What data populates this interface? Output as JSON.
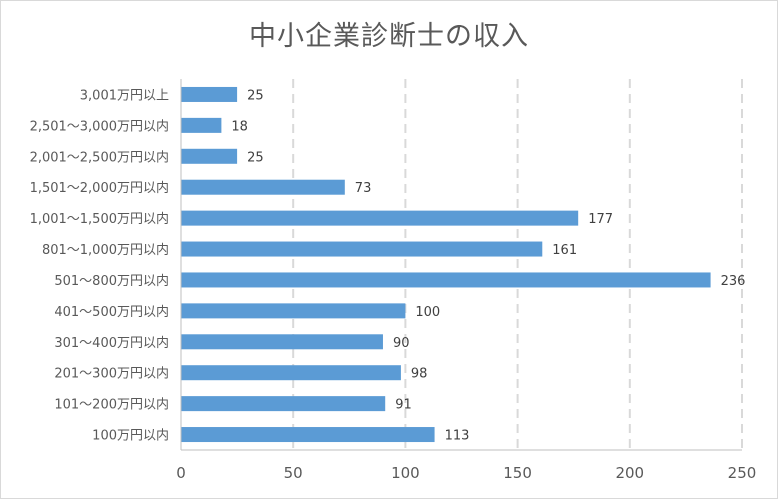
{
  "chart_data": {
    "type": "bar",
    "orientation": "horizontal",
    "title": "中小企業診断士の収入",
    "xlabel": "",
    "ylabel": "",
    "categories": [
      "3,001万円以上",
      "2,501～3,000万円以内",
      "2,001～2,500万円以内",
      "1,501～2,000万円以内",
      "1,001～1,500万円以内",
      "801～1,000万円以内",
      "501～800万円以内",
      "401～500万円以内",
      "301～400万円以内",
      "201～300万円以内",
      "101～200万円以内",
      "100万円以内"
    ],
    "values": [
      25,
      18,
      25,
      73,
      177,
      161,
      236,
      100,
      90,
      98,
      91,
      113
    ],
    "xlim": [
      0,
      250
    ],
    "xticks": [
      "0",
      "50",
      "100",
      "150",
      "200",
      "250"
    ],
    "grid": "vertical dashed",
    "legend": "none",
    "bar_color": "#5b9bd5"
  }
}
